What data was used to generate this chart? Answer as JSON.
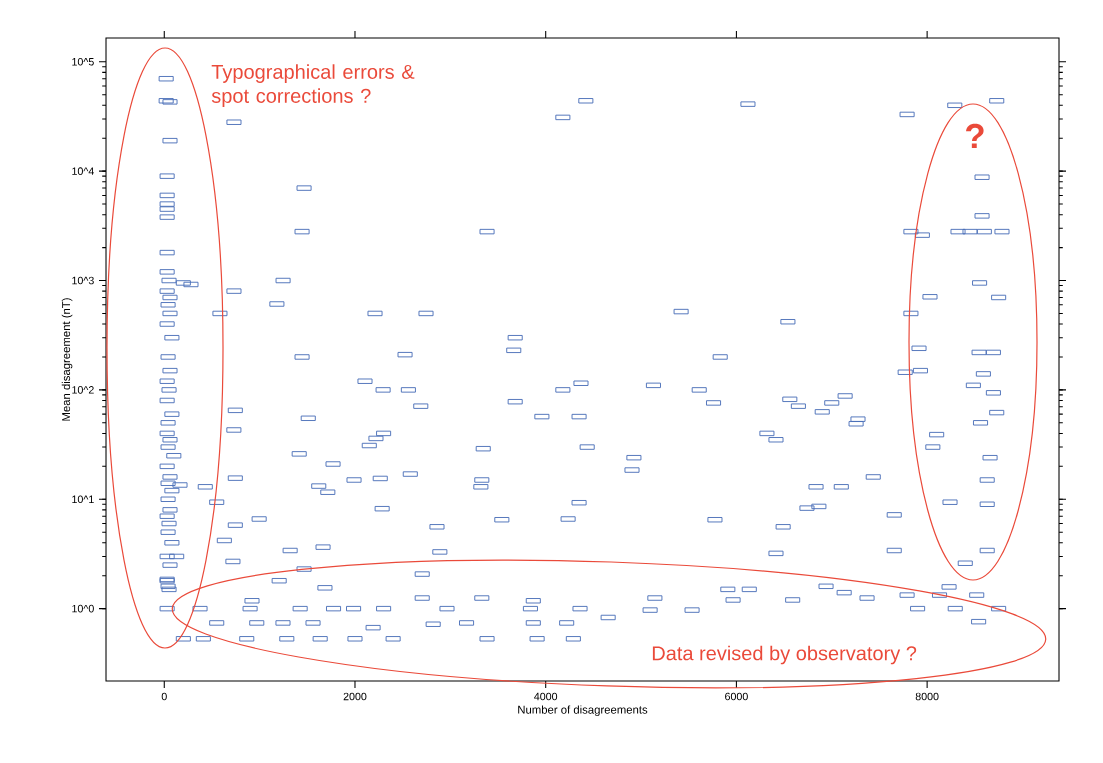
{
  "chart_data": {
    "type": "scatter",
    "xlabel": "Number of disagreements",
    "ylabel": "Mean disagreement (nT)",
    "annotations": [
      "Typographical errors & spot corrections ?",
      "?",
      "Data revised by observatory ?"
    ],
    "x": [
      20,
      20,
      60,
      60,
      30,
      30,
      30,
      30,
      30,
      30,
      30,
      50,
      200,
      280,
      30,
      60,
      40,
      60,
      30,
      80,
      40,
      60,
      30,
      50,
      30,
      80,
      40,
      30,
      60,
      40,
      100,
      30,
      60,
      40,
      80,
      40,
      60,
      30,
      50,
      40,
      80,
      30,
      60,
      30,
      50,
      130,
      30,
      40,
      165,
      731,
      4421,
      4180,
      1466,
      1445,
      3385,
      1246,
      731,
      1181,
      584,
      2210,
      2745,
      3680,
      3665,
      2525,
      1445,
      2105,
      2295,
      2560,
      4180,
      4370,
      6121,
      7790,
      8290,
      8730,
      8576,
      8576,
      8324,
      8450,
      8600,
      8785,
      7830,
      7950,
      8030,
      8550,
      8750,
      7830,
      5420,
      6540,
      5830,
      5130,
      5610,
      7915,
      7930,
      7770,
      8545,
      8695,
      8590,
      5760,
      6560,
      6650,
      7000,
      7140,
      6900,
      7275,
      7255,
      6320,
      6415,
      4925,
      4905,
      7435,
      6835,
      7100,
      6740,
      6865,
      7655,
      5775,
      6490,
      6415,
      7655,
      8100,
      8060,
      8240,
      8630,
      8630,
      8630,
      8400,
      8660,
      8730,
      8560,
      8695,
      8485,
      8230,
      8130,
      8520,
      8295,
      8750,
      8540,
      7900,
      5145,
      5095,
      5965,
      6590,
      7370,
      5910,
      6135,
      6940,
      7130,
      7790,
      4655,
      5535,
      30,
      375,
      900,
      1425,
      1775,
      1985,
      2300,
      2965,
      3840,
      4360,
      3170,
      3870,
      4220,
      550,
      970,
      1245,
      1560,
      2190,
      2820,
      200,
      410,
      865,
      1285,
      1635,
      2000,
      2400,
      3385,
      3910,
      4290,
      3330,
      920,
      2705,
      3870,
      1205,
      1685,
      2705,
      1466,
      2890,
      2860,
      2285,
      4350,
      4235,
      3540,
      1320,
      1665,
      995,
      1990,
      2265,
      2580,
      3330,
      3320,
      1620,
      1715,
      1415,
      1770,
      2150,
      2220,
      2300,
      3345,
      4435,
      3960,
      4350,
      2690,
      3680,
      1510,
      745,
      730,
      745,
      745,
      720,
      630,
      430,
      550
    ],
    "values": [
      70000,
      44000,
      43000,
      19000,
      9000,
      6000,
      5000,
      4500,
      3800,
      1800,
      1200,
      1000,
      950,
      920,
      800,
      700,
      600,
      500,
      400,
      300,
      200,
      150,
      120,
      100,
      80,
      60,
      50,
      40,
      35,
      30,
      25,
      20,
      16,
      14,
      12,
      10,
      8,
      7,
      6,
      5,
      4,
      3,
      2.5,
      1.8,
      1.5,
      3,
      1.85,
      1.6,
      13.5,
      28000,
      44000,
      31000,
      7000,
      2800,
      2800,
      1000,
      800,
      610,
      500,
      500,
      500,
      300,
      230,
      210,
      200,
      120,
      100,
      100,
      100,
      115,
      41000,
      33000,
      40000,
      44000,
      8800,
      3900,
      2800,
      2800,
      2800,
      2800,
      2800,
      2600,
      710,
      950,
      700,
      500,
      520,
      420,
      200,
      110,
      100,
      240,
      150,
      145,
      220,
      220,
      140,
      76,
      82,
      71,
      76,
      88,
      63,
      54,
      49,
      40,
      35,
      24,
      18.5,
      16,
      13,
      13,
      8.3,
      8.6,
      7.2,
      6.5,
      5.6,
      3.2,
      3.4,
      39,
      30,
      9.4,
      15,
      9,
      3.4,
      2.6,
      24,
      62,
      50,
      94,
      110,
      1.58,
      1.33,
      1.33,
      1,
      1,
      0.76,
      1,
      1.25,
      0.97,
      1.2,
      1.2,
      1.25,
      1.5,
      1.5,
      1.6,
      1.4,
      1.33,
      0.83,
      0.97,
      1,
      1,
      1,
      1,
      1,
      1,
      1,
      1,
      1,
      1,
      0.74,
      0.74,
      0.74,
      0.74,
      0.74,
      0.74,
      0.74,
      0.67,
      0.72,
      0.53,
      0.53,
      0.53,
      0.53,
      0.53,
      0.53,
      0.53,
      0.53,
      0.53,
      0.53,
      1.25,
      1.18,
      1.25,
      1.18,
      1.8,
      1.55,
      2.07,
      2.3,
      3.3,
      5.6,
      8.2,
      9.3,
      6.6,
      6.5,
      3.4,
      3.65,
      6.6,
      15,
      15.5,
      17,
      15,
      13,
      13.2,
      11.6,
      26,
      21,
      31,
      36,
      40,
      29,
      30,
      57,
      57,
      71,
      78,
      55,
      65,
      43,
      15.6,
      5.8,
      2.7,
      4.2,
      13,
      9.4
    ],
    "color": "#4a6fb8",
    "marker": "square",
    "log": "y",
    "xlim": [
      -611,
      9383
    ],
    "ylim": [
      0.218,
      165000
    ],
    "xticks": [
      0,
      2000,
      4000,
      6000,
      8000
    ],
    "yticks": [
      {
        "value": 1,
        "label": "10^0"
      },
      {
        "value": 10,
        "label": "10^1"
      },
      {
        "value": 100,
        "label": "10^2"
      },
      {
        "value": 1000,
        "label": "10^3"
      },
      {
        "value": 10000,
        "label": "10^4"
      },
      {
        "value": 100000,
        "label": "10^5"
      }
    ],
    "grid": false
  }
}
